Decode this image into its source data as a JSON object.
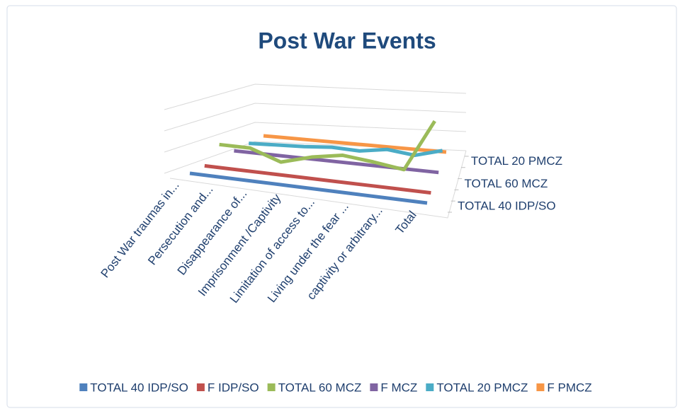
{
  "chart_data": {
    "type": "line3d",
    "title": "Post War Events",
    "categories": [
      "Post War traumas in...",
      "Persecution and...",
      "Disappearance of...",
      "Imprisonment /Captivity",
      "Limitation of access to...",
      "Living under the fear ...",
      "captivity or arbitrary...",
      "Total"
    ],
    "series": [
      {
        "name": "TOTAL 40 IDP/SO",
        "color": "#4f81bd",
        "values": [
          0,
          0,
          0,
          0,
          0,
          0,
          0,
          0
        ]
      },
      {
        "name": "F IDP/SO",
        "color": "#c0504d",
        "values": [
          0,
          0,
          0,
          0,
          0,
          0,
          0,
          0
        ]
      },
      {
        "name": "TOTAL 60 MCZ",
        "color": "#9bbb59",
        "values": [
          13,
          13,
          3,
          11,
          16,
          13,
          9,
          58
        ]
      },
      {
        "name": "F MCZ",
        "color": "#8064a2",
        "values": [
          0,
          0,
          0,
          0,
          0,
          0,
          0,
          0
        ]
      },
      {
        "name": "TOTAL 20 PMCZ",
        "color": "#4bacc6",
        "values": [
          0,
          1,
          2,
          4,
          3,
          7,
          4,
          11
        ]
      },
      {
        "name": "F PMCZ",
        "color": "#f79646",
        "values": [
          0,
          0,
          0,
          0,
          0,
          0,
          0,
          0
        ]
      }
    ],
    "ylim": [
      0,
      60
    ],
    "yticks": [
      0,
      20,
      40,
      60
    ],
    "grid": true
  }
}
